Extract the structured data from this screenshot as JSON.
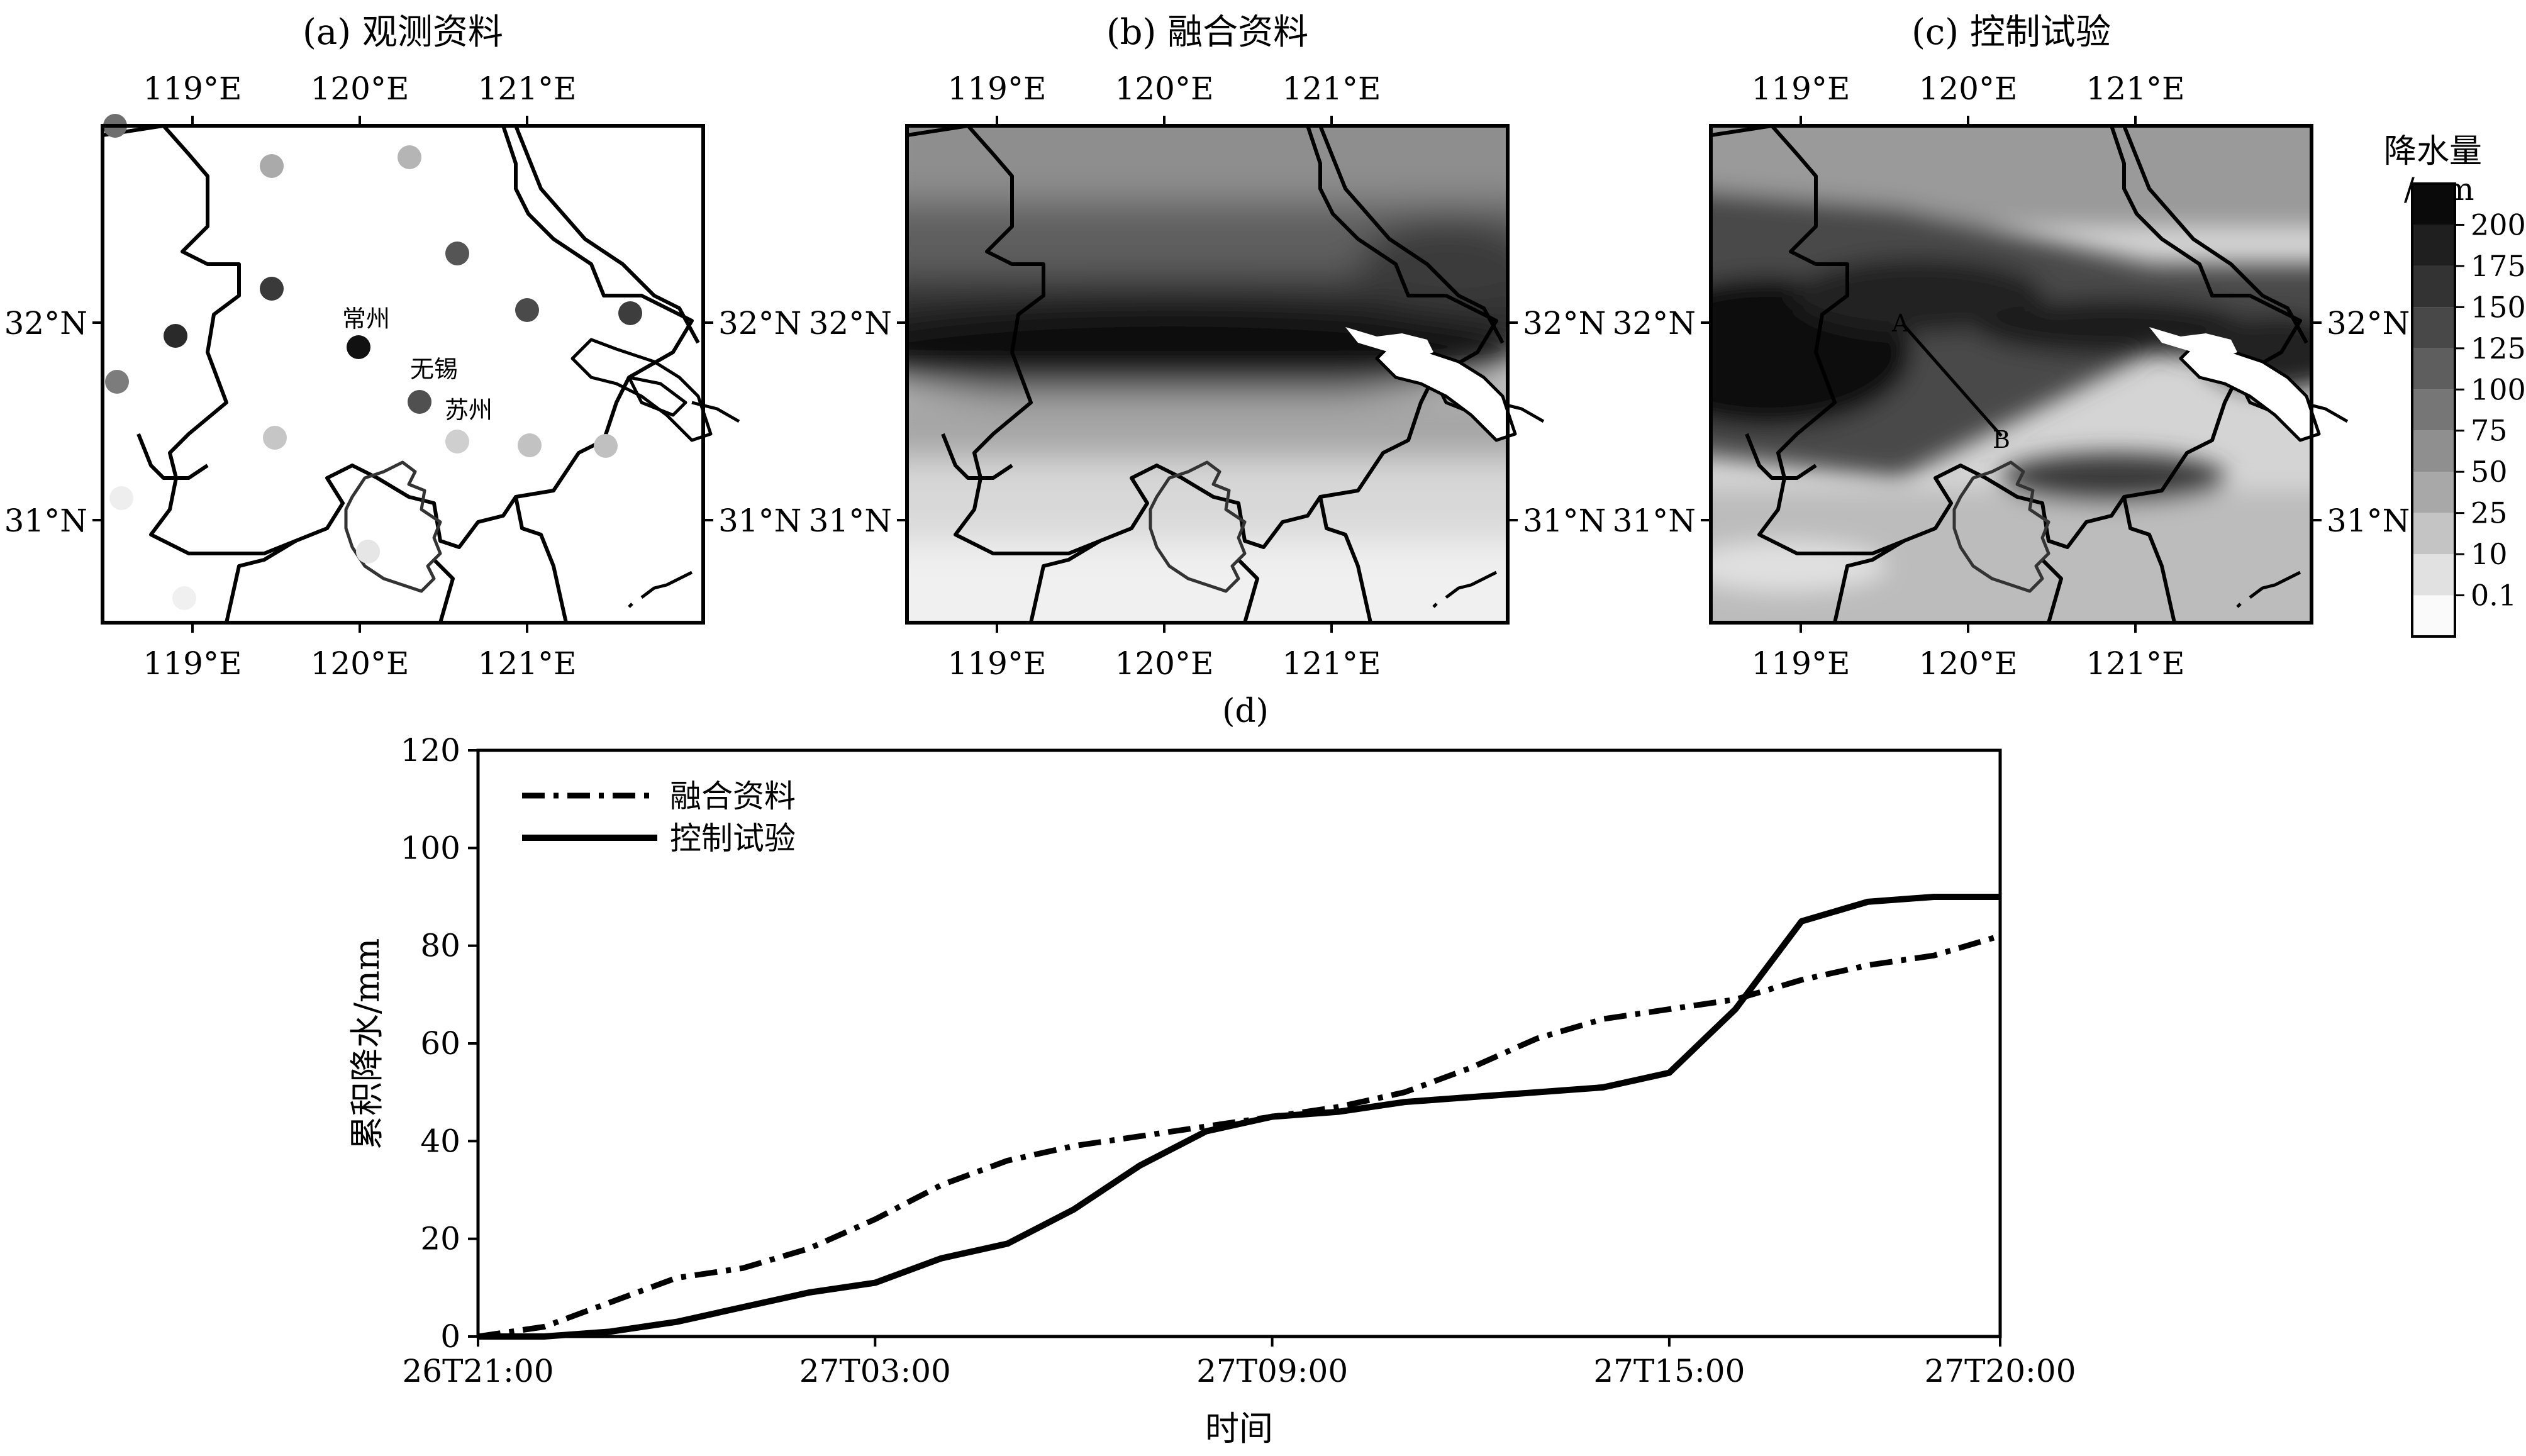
{
  "maps": [
    {
      "title": "(a) 观测资料",
      "x_ticks": [
        "119°E",
        "120°E",
        "121°E"
      ],
      "y_ticks": [
        "32°N",
        "31°N"
      ]
    },
    {
      "title": "(b) 融合资料",
      "x_ticks": [
        "119°E",
        "120°E",
        "121°E"
      ],
      "y_ticks": [
        "32°N",
        "31°N"
      ]
    },
    {
      "title": "(c) 控制试验",
      "x_ticks": [
        "119°E",
        "120°E",
        "121°E"
      ],
      "y_ticks": [
        "32°N",
        "31°N"
      ]
    }
  ],
  "city_labels": [
    "常州",
    "无锡",
    "苏州"
  ],
  "section_points": [
    "A",
    "B"
  ],
  "colorbar": {
    "title": "降水量",
    "unit": "/mm",
    "levels": [
      "200",
      "175",
      "150",
      "125",
      "100",
      "75",
      "50",
      "25",
      "10",
      "0.1"
    ],
    "colors": [
      "#0a0a0a",
      "#1f1f1f",
      "#333333",
      "#484848",
      "#5e5e5e",
      "#767676",
      "#8f8f8f",
      "#a8a8a8",
      "#c4c4c4",
      "#e1e1e1",
      "#fafafa"
    ]
  },
  "chart_data": {
    "title": "(d)",
    "type": "line",
    "xlabel": "时间",
    "ylabel": "累积降水/mm",
    "x_ticks": [
      "26T21:00",
      "27T03:00",
      "27T09:00",
      "27T15:00",
      "27T20:00"
    ],
    "x_tick_hours": [
      0,
      6,
      12,
      18,
      23
    ],
    "ylim": [
      0,
      120
    ],
    "y_ticks": [
      0,
      20,
      40,
      60,
      80,
      100,
      120
    ],
    "legend_position": "top-left",
    "series": [
      {
        "name": "融合资料",
        "style": "dash-dot",
        "x": [
          0,
          1,
          2,
          3,
          4,
          5,
          6,
          7,
          8,
          9,
          10,
          11,
          12,
          13,
          14,
          15,
          16,
          17,
          18,
          19,
          20,
          21,
          22,
          23
        ],
        "values": [
          0,
          2,
          7,
          12,
          14,
          18,
          24,
          31,
          36,
          39,
          41,
          43,
          45,
          47,
          50,
          55,
          61,
          65,
          67,
          69,
          73,
          76,
          78,
          82
        ]
      },
      {
        "name": "控制试验",
        "style": "solid",
        "x": [
          0,
          1,
          2,
          3,
          4,
          5,
          6,
          7,
          8,
          9,
          10,
          11,
          12,
          13,
          14,
          15,
          16,
          17,
          18,
          19,
          20,
          21,
          22,
          23
        ],
        "values": [
          0,
          0,
          1,
          3,
          6,
          9,
          11,
          16,
          19,
          26,
          35,
          42,
          45,
          46,
          48,
          49,
          50,
          51,
          54,
          67,
          85,
          89,
          90,
          90
        ]
      }
    ]
  }
}
